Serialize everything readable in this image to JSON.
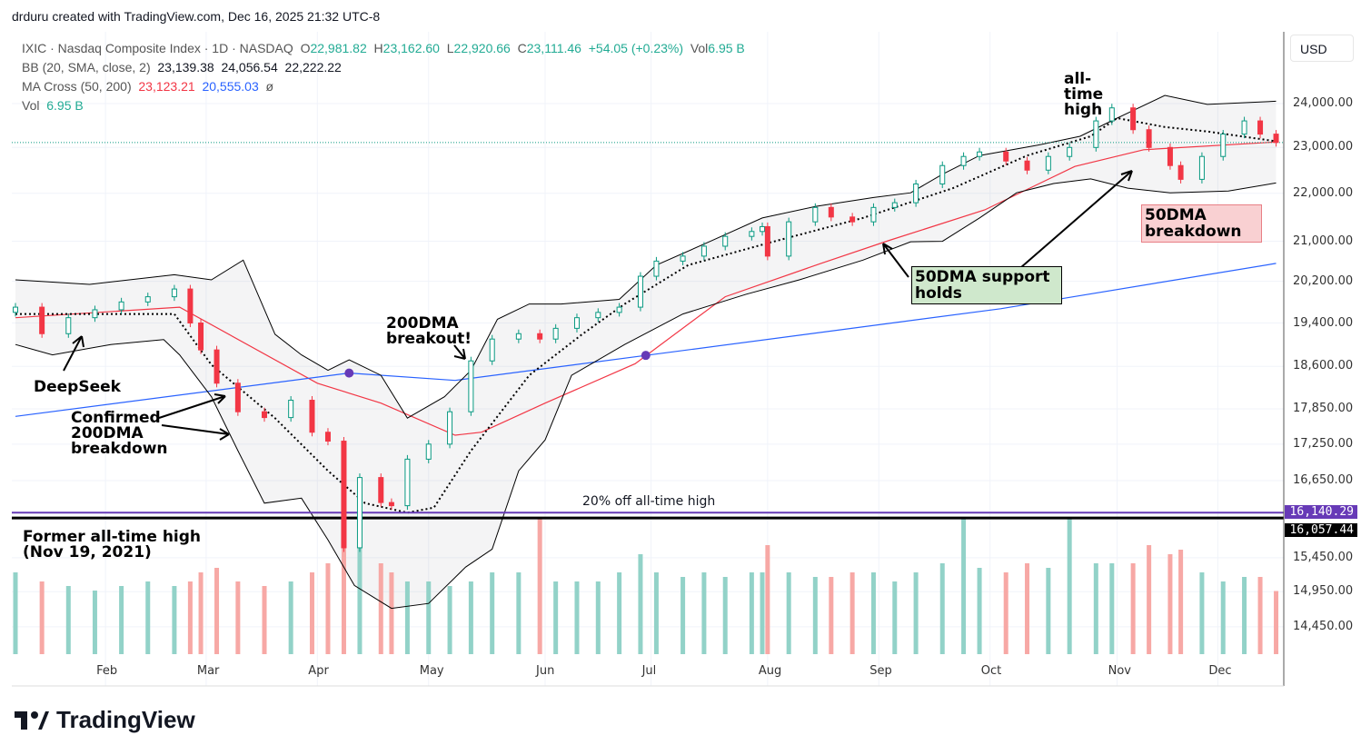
{
  "credit": "drduru created with TradingView.com, Dec 16, 2025 21:32 UTC-8",
  "legend": {
    "symbol": "IXIC · Nasdaq Composite Index · 1D · NASDAQ",
    "o_label": "O",
    "o": "22,981.82",
    "h_label": "H",
    "h": "23,162.60",
    "l_label": "L",
    "l": "22,920.66",
    "c_label": "C",
    "c": "23,111.46",
    "change": "+54.05 (+0.23%)",
    "vol_label": "Vol",
    "vol": "6.95 B",
    "bb_label": "BB (20, SMA, close, 2)",
    "bb_mid": "23,139.38",
    "bb_up": "24,056.54",
    "bb_low": "22,222.22",
    "ma_label": "MA Cross (50, 200)",
    "ma50": "23,123.21",
    "ma200": "20,555.03",
    "ma_sym": "ø",
    "vol2_label": "Vol",
    "vol2": "6.95 B"
  },
  "currency": "USD",
  "brand": "TradingView",
  "colors": {
    "up": "#089981",
    "down": "#f23645",
    "ma50": "#f23645",
    "ma200": "#2962ff",
    "vol_up": "#92d2c8",
    "vol_down": "#f7a8a5",
    "level1": "#673ab7",
    "level2": "#000000"
  },
  "chart_data": {
    "type": "candlestick",
    "title": "IXIC · Nasdaq Composite Index · 1D",
    "scale": "log",
    "ylim": [
      14300,
      24500
    ],
    "y_ticks": [
      "24,000.00",
      "23,000.00",
      "22,000.00",
      "21,000.00",
      "20,200.00",
      "19,400.00",
      "18,600.00",
      "17,850.00",
      "17,250.00",
      "16,650.00",
      "15,450.00",
      "14,950.00",
      "14,450.00"
    ],
    "y_tick_values": [
      24000,
      23000,
      22000,
      21000,
      20200,
      19400,
      18600,
      17850,
      17250,
      16650,
      15450,
      14950,
      14450
    ],
    "x_unit": "trading day index (2025)",
    "x_ticks": [
      {
        "label": "Feb",
        "d": 17
      },
      {
        "label": "Mar",
        "d": 36
      },
      {
        "label": "Apr",
        "d": 57
      },
      {
        "label": "May",
        "d": 78
      },
      {
        "label": "Jun",
        "d": 100
      },
      {
        "label": "Jul",
        "d": 120
      },
      {
        "label": "Aug",
        "d": 142
      },
      {
        "label": "Sep",
        "d": 163
      },
      {
        "label": "Oct",
        "d": 184
      },
      {
        "label": "Nov",
        "d": 208
      },
      {
        "label": "Dec",
        "d": 227
      }
    ],
    "closes": [
      [
        0,
        19700
      ],
      [
        5,
        19200
      ],
      [
        10,
        19500
      ],
      [
        15,
        19650
      ],
      [
        20,
        19800
      ],
      [
        25,
        19900
      ],
      [
        30,
        20050
      ],
      [
        33,
        19400
      ],
      [
        35,
        18900
      ],
      [
        38,
        18300
      ],
      [
        42,
        17800
      ],
      [
        47,
        17700
      ],
      [
        52,
        18000
      ],
      [
        56,
        17450
      ],
      [
        59,
        17300
      ],
      [
        62,
        15600
      ],
      [
        65,
        16700
      ],
      [
        69,
        16300
      ],
      [
        71,
        16250
      ],
      [
        74,
        17000
      ],
      [
        78,
        17250
      ],
      [
        82,
        17800
      ],
      [
        86,
        18700
      ],
      [
        90,
        19100
      ],
      [
        95,
        19200
      ],
      [
        99,
        19100
      ],
      [
        102,
        19300
      ],
      [
        106,
        19500
      ],
      [
        110,
        19600
      ],
      [
        114,
        19700
      ],
      [
        118,
        20300
      ],
      [
        121,
        20600
      ],
      [
        126,
        20700
      ],
      [
        130,
        20900
      ],
      [
        134,
        21100
      ],
      [
        139,
        21200
      ],
      [
        141,
        21300
      ],
      [
        142,
        20700
      ],
      [
        146,
        21400
      ],
      [
        151,
        21700
      ],
      [
        154,
        21500
      ],
      [
        158,
        21400
      ],
      [
        162,
        21700
      ],
      [
        166,
        21800
      ],
      [
        170,
        22200
      ],
      [
        175,
        22600
      ],
      [
        179,
        22800
      ],
      [
        182,
        22900
      ],
      [
        187,
        22700
      ],
      [
        191,
        22500
      ],
      [
        195,
        22800
      ],
      [
        199,
        23000
      ],
      [
        204,
        23600
      ],
      [
        207,
        23900
      ],
      [
        211,
        23400
      ],
      [
        214,
        23000
      ],
      [
        218,
        22600
      ],
      [
        220,
        22300
      ],
      [
        224,
        22800
      ],
      [
        228,
        23300
      ],
      [
        232,
        23600
      ],
      [
        235,
        23300
      ],
      [
        238,
        23111
      ]
    ],
    "volume_b": [
      9,
      8,
      7.5,
      7,
      7.5,
      8,
      7.5,
      8,
      9,
      9.5,
      8,
      7.5,
      8,
      9,
      10,
      13,
      12,
      10,
      9,
      8,
      8,
      7.5,
      8,
      9,
      9,
      15,
      8,
      8,
      8,
      9,
      11,
      9,
      8.5,
      9,
      8.5,
      9,
      9,
      12,
      9,
      8.5,
      8.5,
      9,
      9,
      8,
      9,
      10,
      15,
      9.5,
      9,
      10,
      9.5,
      15,
      10,
      10,
      10,
      12,
      11,
      11.5,
      9,
      8,
      8.5,
      8.5,
      6.95
    ],
    "series": [
      {
        "name": "MA 50",
        "points": [
          [
            0,
            19500
          ],
          [
            31,
            19700
          ],
          [
            57,
            18300
          ],
          [
            69,
            17950
          ],
          [
            83,
            17400
          ],
          [
            88,
            17450
          ],
          [
            100,
            17950
          ],
          [
            117,
            18650
          ],
          [
            134,
            19900
          ],
          [
            152,
            20550
          ],
          [
            165,
            21020
          ],
          [
            183,
            21650
          ],
          [
            200,
            22580
          ],
          [
            213,
            22950
          ],
          [
            238,
            23123
          ]
        ]
      },
      {
        "name": "MA 200",
        "points": [
          [
            0,
            17720
          ],
          [
            63,
            18480
          ],
          [
            83,
            18350
          ],
          [
            119,
            18800
          ],
          [
            186,
            19670
          ],
          [
            238,
            20555
          ]
        ]
      },
      {
        "name": "BB upper",
        "points": [
          [
            0,
            20230
          ],
          [
            14,
            20140
          ],
          [
            30,
            20330
          ],
          [
            37,
            20230
          ],
          [
            43,
            20620
          ],
          [
            49,
            19190
          ],
          [
            54,
            18810
          ],
          [
            59,
            18530
          ],
          [
            63,
            18720
          ],
          [
            69,
            18440
          ],
          [
            74,
            17690
          ],
          [
            81,
            18060
          ],
          [
            86,
            18530
          ],
          [
            91,
            19470
          ],
          [
            97,
            19760
          ],
          [
            103,
            19760
          ],
          [
            114,
            19850
          ],
          [
            121,
            20520
          ],
          [
            131,
            20990
          ],
          [
            141,
            21480
          ],
          [
            151,
            21720
          ],
          [
            162,
            21910
          ],
          [
            169,
            22010
          ],
          [
            175,
            22410
          ],
          [
            182,
            22820
          ],
          [
            193,
            23050
          ],
          [
            201,
            23250
          ],
          [
            208,
            23665
          ],
          [
            217,
            24190
          ],
          [
            225,
            23980
          ],
          [
            238,
            24056
          ]
        ]
      },
      {
        "name": "BB lower",
        "points": [
          [
            0,
            19000
          ],
          [
            7,
            18810
          ],
          [
            18,
            19000
          ],
          [
            28,
            19090
          ],
          [
            31,
            18810
          ],
          [
            37,
            18060
          ],
          [
            42,
            17140
          ],
          [
            47,
            16290
          ],
          [
            54,
            16370
          ],
          [
            59,
            15720
          ],
          [
            64,
            15040
          ],
          [
            71,
            14710
          ],
          [
            78,
            14780
          ],
          [
            85,
            15310
          ],
          [
            90,
            15580
          ],
          [
            95,
            16810
          ],
          [
            100,
            17320
          ],
          [
            105,
            18440
          ],
          [
            115,
            19000
          ],
          [
            126,
            19570
          ],
          [
            138,
            19950
          ],
          [
            148,
            20230
          ],
          [
            160,
            20620
          ],
          [
            169,
            20990
          ],
          [
            175,
            21000
          ],
          [
            182,
            21480
          ],
          [
            189,
            22010
          ],
          [
            196,
            22210
          ],
          [
            203,
            22310
          ],
          [
            210,
            22110
          ],
          [
            218,
            22010
          ],
          [
            229,
            22050
          ],
          [
            238,
            22222
          ]
        ]
      },
      {
        "name": "BB basis",
        "points": [
          [
            0,
            19570
          ],
          [
            30,
            19570
          ],
          [
            37,
            18630
          ],
          [
            49,
            17690
          ],
          [
            59,
            16810
          ],
          [
            66,
            16290
          ],
          [
            74,
            16140
          ],
          [
            79,
            16220
          ],
          [
            86,
            17140
          ],
          [
            97,
            18440
          ],
          [
            107,
            19190
          ],
          [
            115,
            19760
          ],
          [
            127,
            20520
          ],
          [
            143,
            20990
          ],
          [
            160,
            21480
          ],
          [
            177,
            22110
          ],
          [
            191,
            22820
          ],
          [
            203,
            23250
          ],
          [
            208,
            23665
          ],
          [
            217,
            23460
          ],
          [
            225,
            23360
          ],
          [
            238,
            23139
          ]
        ]
      }
    ],
    "cross_markers": [
      [
        63,
        18480
      ],
      [
        119,
        18800
      ]
    ],
    "levels": [
      {
        "value": 16140.29,
        "label": "16,140.29"
      },
      {
        "value": 16057.44,
        "label": "16,057.44"
      }
    ],
    "last_price": 23111.46,
    "annotations": {
      "ath": "all-time high",
      "deepseek": "DeepSeek",
      "confirmed": "Confirmed 200DMA breakdown",
      "breakout": "200DMA breakout!",
      "support": "50DMA support holds",
      "breakdown50": "50DMA breakdown",
      "off20": "20% off all-time high",
      "former_ath": "Former all-time high (Nov 19, 2021)"
    }
  }
}
